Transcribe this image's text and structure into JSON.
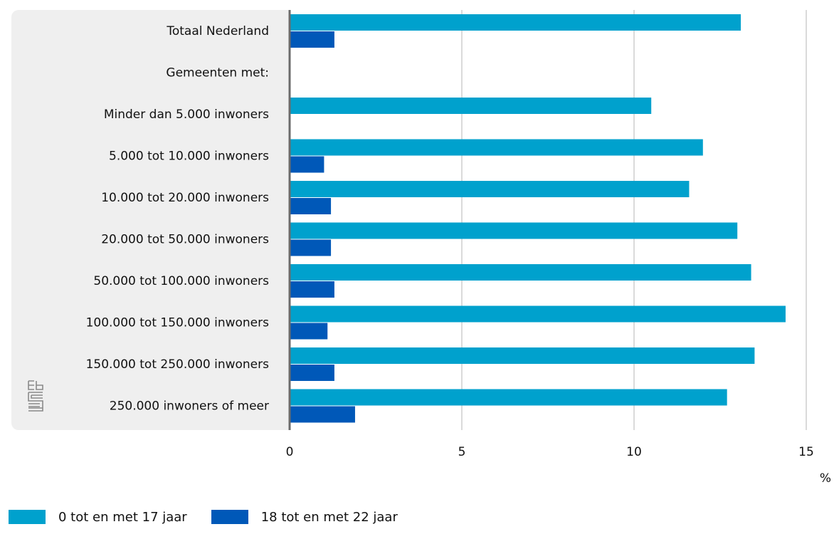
{
  "colors": {
    "series1": "#00a1cd",
    "series2": "#0058b8",
    "panel": "#efefef",
    "grid": "#b5b5b5",
    "axis": "#6b6b6b",
    "logo": "#8a8a8a"
  },
  "legend": {
    "items": [
      {
        "label": "0 tot en met 17 jaar"
      },
      {
        "label": "18 tot en met 22 jaar"
      }
    ]
  },
  "chart_data": {
    "type": "bar",
    "orientation": "horizontal",
    "categories": [
      "Totaal Nederland",
      "Gemeenten met:",
      "Minder dan 5.000 inwoners",
      "5.000 tot 10.000 inwoners",
      "10.000 tot 20.000 inwoners",
      "20.000 tot 50.000 inwoners",
      "50.000 tot 100.000 inwoners",
      "100.000 tot 150.000 inwoners",
      "150.000 tot 250.000 inwoners",
      "250.000 inwoners of meer"
    ],
    "series": [
      {
        "name": "0 tot en met 17 jaar",
        "values": [
          13.1,
          null,
          10.5,
          12.0,
          11.6,
          13.0,
          13.4,
          14.4,
          13.5,
          12.7
        ]
      },
      {
        "name": "18 tot en met 22 jaar",
        "values": [
          1.3,
          null,
          null,
          1.0,
          1.2,
          1.2,
          1.3,
          1.1,
          1.3,
          1.9
        ]
      }
    ],
    "xlim": [
      0,
      15
    ],
    "xticks": [
      "0",
      "5",
      "10",
      "15"
    ],
    "xtick_values": [
      0,
      5,
      10,
      15
    ],
    "unit": "%",
    "grid": true,
    "legend_position": "bottom-left"
  }
}
